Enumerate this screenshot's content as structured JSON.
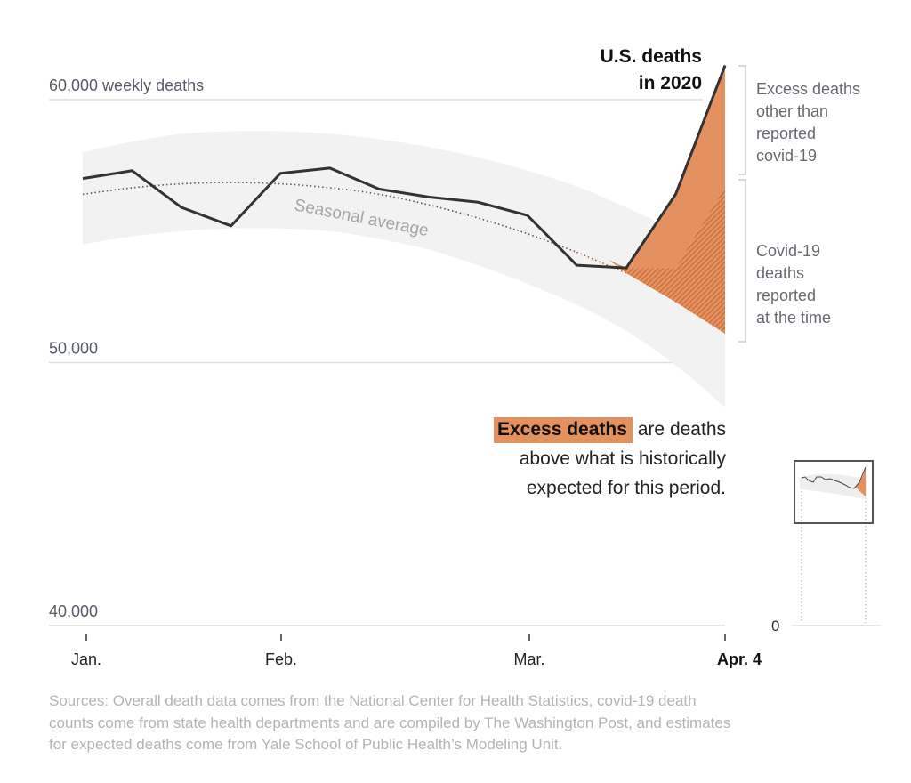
{
  "chart_data": {
    "type": "line",
    "title": "U.S. deaths in 2020",
    "title_lines": [
      "U.S. deaths",
      "in 2020"
    ],
    "ylabel": "weekly deaths",
    "ylim": [
      40000,
      61500
    ],
    "y_ticks": [
      {
        "value": 60000,
        "label": "60,000 weekly deaths"
      },
      {
        "value": 50000,
        "label": "50,000"
      },
      {
        "value": 40000,
        "label": "40,000"
      }
    ],
    "x_ticks": [
      {
        "week": 0,
        "label": "Jan.",
        "bold": false
      },
      {
        "week": 4,
        "label": "Feb.",
        "bold": false
      },
      {
        "week": 9,
        "label": "Mar.",
        "bold": false
      },
      {
        "week": 13,
        "label": "Apr. 4",
        "bold": true
      }
    ],
    "x_range": [
      0,
      13
    ],
    "grid": true,
    "series": [
      {
        "name": "U.S. deaths in 2020",
        "color": "#333333",
        "values": [
          57000,
          57300,
          55900,
          55200,
          57200,
          57400,
          56600,
          56300,
          56100,
          55600,
          53700,
          53600,
          56400,
          61300
        ]
      },
      {
        "name": "Seasonal average",
        "color": "#555555",
        "style": "dotted",
        "values": [
          56400,
          56650,
          56800,
          56850,
          56800,
          56650,
          56400,
          56000,
          55500,
          54900,
          54200,
          53400,
          52300,
          51100
        ]
      }
    ],
    "band": {
      "name": "Expected range",
      "color": "#f2f2f2",
      "upper": [
        58000,
        58400,
        58700,
        58800,
        58800,
        58700,
        58500,
        58200,
        57800,
        57300,
        56700,
        55900,
        55000,
        53900
      ],
      "lower": [
        54500,
        54800,
        55000,
        55100,
        55100,
        55000,
        54700,
        54300,
        53700,
        53000,
        52200,
        51200,
        49900,
        48300
      ]
    },
    "excess": {
      "color": "#e3915e",
      "start_week": 11,
      "covid_reported_top": [
        53600,
        53600,
        53600,
        56700
      ]
    },
    "annotations": [
      {
        "label": "Seasonal average",
        "lines": [
          "Seasonal average"
        ]
      },
      {
        "label": "Excess deaths other than reported covid-19",
        "lines": [
          "Excess deaths",
          "other than",
          "reported",
          "covid-19"
        ]
      },
      {
        "label": "Covid-19 deaths reported at the time",
        "lines": [
          "Covid-19",
          "deaths",
          "reported",
          "at the time"
        ]
      }
    ],
    "inset": {
      "zero_label": "0",
      "description": "Locator mini-chart showing full y range from 0 with highlighted window"
    }
  },
  "explainer": {
    "highlight": "Excess deaths",
    "rest_line1": " are deaths",
    "line2": "above what is historically",
    "line3": "expected for this period."
  },
  "sources": "Sources: Overall death data comes from the National Center for Health Statistics, covid-19 death counts come from state health departments and are compiled by The Washington Post, and estimates for expected deaths come from Yale School of Public Health’s Modeling Unit."
}
